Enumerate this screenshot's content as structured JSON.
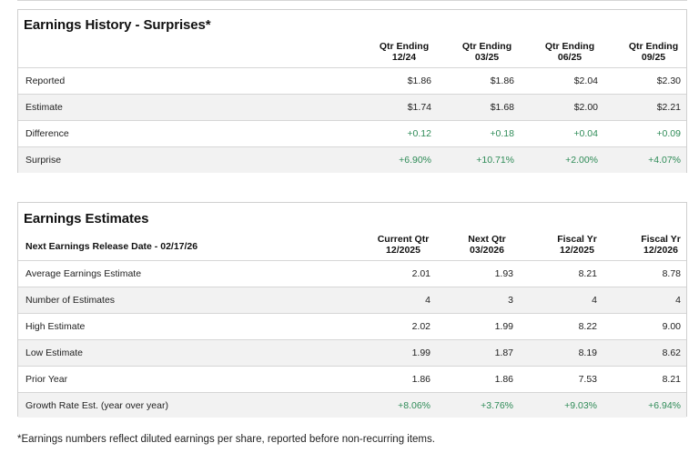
{
  "history": {
    "title": "Earnings History - Surprises*",
    "columns": [
      {
        "line1": "Qtr Ending",
        "line2": "12/24"
      },
      {
        "line1": "Qtr Ending",
        "line2": "03/25"
      },
      {
        "line1": "Qtr Ending",
        "line2": "06/25"
      },
      {
        "line1": "Qtr Ending",
        "line2": "09/25"
      }
    ],
    "rows": [
      {
        "label": "Reported",
        "values": [
          "$1.86",
          "$1.86",
          "$2.04",
          "$2.30"
        ]
      },
      {
        "label": "Estimate",
        "values": [
          "$1.74",
          "$1.68",
          "$2.00",
          "$2.21"
        ]
      },
      {
        "label": "Difference",
        "values": [
          "+0.12",
          "+0.18",
          "+0.04",
          "+0.09"
        ]
      },
      {
        "label": "Surprise",
        "values": [
          "+6.90%",
          "+10.71%",
          "+2.00%",
          "+4.07%"
        ]
      }
    ]
  },
  "estimates": {
    "title": "Earnings Estimates",
    "release_label": "Next Earnings Release Date - 02/17/26",
    "columns": [
      {
        "line1": "Current Qtr",
        "line2": "12/2025"
      },
      {
        "line1": "Next Qtr",
        "line2": "03/2026"
      },
      {
        "line1": "Fiscal Yr",
        "line2": "12/2025"
      },
      {
        "line1": "Fiscal Yr",
        "line2": "12/2026"
      }
    ],
    "rows": [
      {
        "label": "Average Earnings Estimate",
        "values": [
          "2.01",
          "1.93",
          "8.21",
          "8.78"
        ]
      },
      {
        "label": "Number of Estimates",
        "values": [
          "4",
          "3",
          "4",
          "4"
        ]
      },
      {
        "label": "High Estimate",
        "values": [
          "2.02",
          "1.99",
          "8.22",
          "9.00"
        ]
      },
      {
        "label": "Low Estimate",
        "values": [
          "1.99",
          "1.87",
          "8.19",
          "8.62"
        ]
      },
      {
        "label": "Prior Year",
        "values": [
          "1.86",
          "1.86",
          "7.53",
          "8.21"
        ]
      },
      {
        "label": "Growth Rate Est. (year over year)",
        "values": [
          "+8.06%",
          "+3.76%",
          "+9.03%",
          "+6.94%"
        ]
      }
    ]
  },
  "footnote": "*Earnings numbers reflect diluted earnings per share, reported before non-recurring items.",
  "colors": {
    "positive": "#2e8b57",
    "alt_row": "#f2f2f2",
    "border": "#cfcfcf"
  }
}
